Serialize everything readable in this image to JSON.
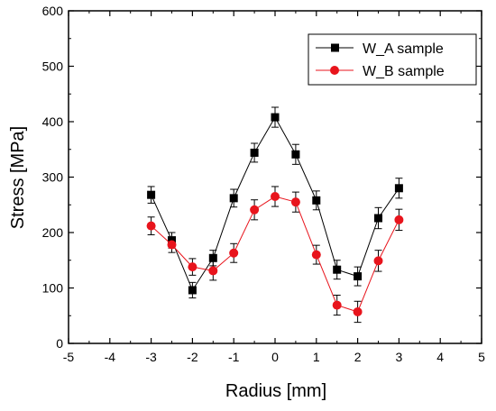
{
  "chart_data": {
    "type": "line",
    "title": "",
    "xlabel": "Radius [mm]",
    "ylabel": "Stress [MPa]",
    "xlim": [
      -5,
      5
    ],
    "ylim": [
      0,
      600
    ],
    "x_ticks": [
      -5,
      -4,
      -3,
      -2,
      -1,
      0,
      1,
      2,
      3,
      4,
      5
    ],
    "y_ticks": [
      0,
      100,
      200,
      300,
      400,
      500,
      600
    ],
    "grid": false,
    "legend_position": "top-right",
    "series": [
      {
        "name": "W_A sample",
        "color": "#000000",
        "marker": "square",
        "x": [
          -3,
          -2.5,
          -2,
          -1.5,
          -1,
          -0.5,
          0,
          0.5,
          1,
          1.5,
          2,
          2.5,
          3
        ],
        "y": [
          268,
          186,
          96,
          154,
          262,
          344,
          408,
          341,
          258,
          133,
          121,
          226,
          280
        ],
        "error": [
          15,
          14,
          14,
          14,
          16,
          17,
          18,
          18,
          17,
          17,
          17,
          19,
          18
        ]
      },
      {
        "name": "W_B sample",
        "color": "#e8141c",
        "marker": "circle",
        "x": [
          -3,
          -2.5,
          -2,
          -1.5,
          -1,
          -0.5,
          0,
          0.5,
          1,
          1.5,
          2,
          2.5,
          3
        ],
        "y": [
          212,
          178,
          138,
          131,
          163,
          241,
          265,
          255,
          160,
          69,
          57,
          149,
          223
        ],
        "error": [
          16,
          14,
          15,
          17,
          17,
          18,
          18,
          18,
          17,
          18,
          19,
          19,
          19
        ]
      }
    ]
  }
}
